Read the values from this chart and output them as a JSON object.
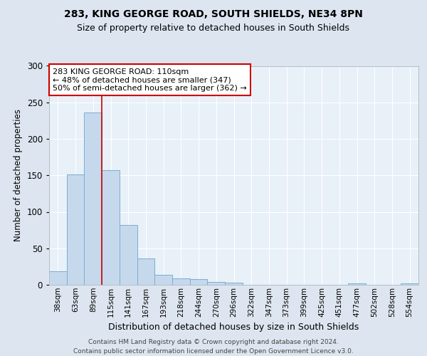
{
  "title1": "283, KING GEORGE ROAD, SOUTH SHIELDS, NE34 8PN",
  "title2": "Size of property relative to detached houses in South Shields",
  "xlabel": "Distribution of detached houses by size in South Shields",
  "ylabel": "Number of detached properties",
  "categories": [
    "38sqm",
    "63sqm",
    "89sqm",
    "115sqm",
    "141sqm",
    "167sqm",
    "193sqm",
    "218sqm",
    "244sqm",
    "270sqm",
    "296sqm",
    "322sqm",
    "347sqm",
    "373sqm",
    "399sqm",
    "425sqm",
    "451sqm",
    "477sqm",
    "502sqm",
    "528sqm",
    "554sqm"
  ],
  "values": [
    19,
    151,
    236,
    157,
    82,
    36,
    14,
    9,
    8,
    4,
    3,
    0,
    0,
    0,
    0,
    0,
    0,
    2,
    0,
    0,
    2
  ],
  "bar_color": "#c6d9ec",
  "bar_edge_color": "#7aadd4",
  "vline_x_index": 2.5,
  "annotation_text": "283 KING GEORGE ROAD: 110sqm\n← 48% of detached houses are smaller (347)\n50% of semi-detached houses are larger (362) →",
  "annotation_box_color": "white",
  "annotation_box_edge_color": "#cc0000",
  "vline_color": "#cc0000",
  "ylim": [
    0,
    300
  ],
  "yticks": [
    0,
    50,
    100,
    150,
    200,
    250,
    300
  ],
  "footer1": "Contains HM Land Registry data © Crown copyright and database right 2024.",
  "footer2": "Contains public sector information licensed under the Open Government Licence v3.0.",
  "background_color": "#dde6f0",
  "plot_bg_color": "#e8f0f8"
}
